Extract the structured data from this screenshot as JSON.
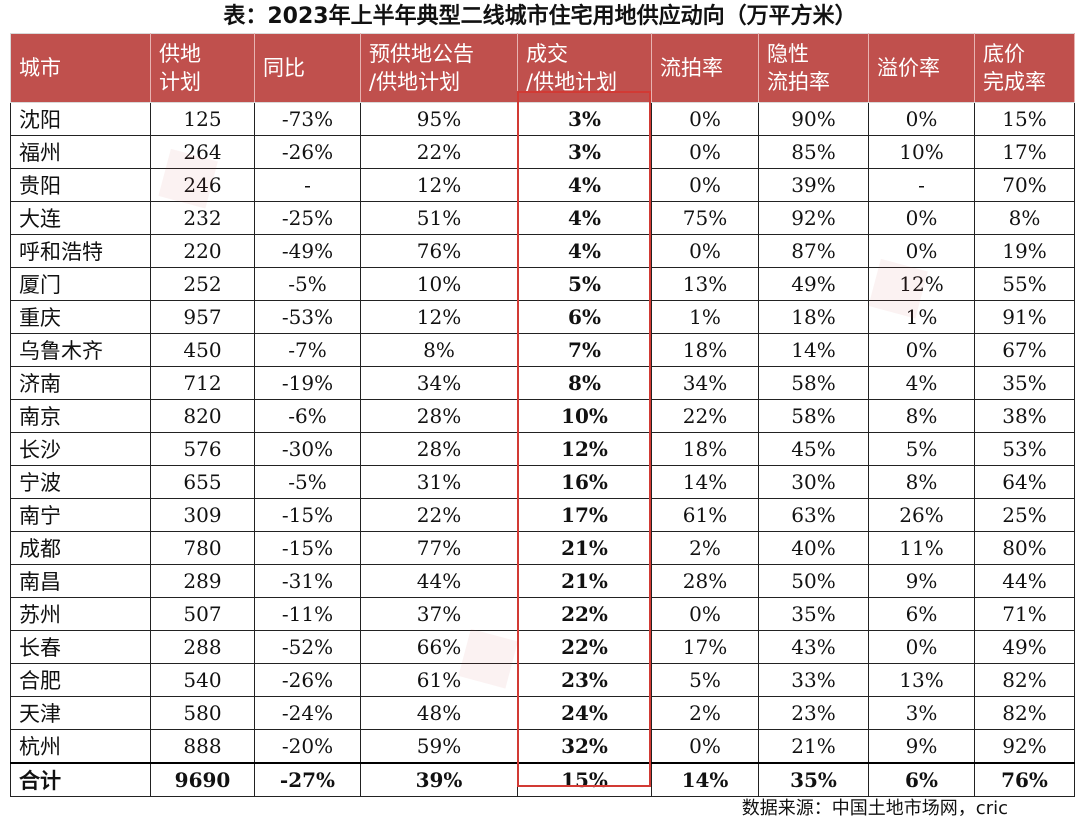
{
  "title": "表：2023年上半年典型二线城市住宅用地供应动向（万平方米）",
  "headers": [
    [
      "城市"
    ],
    [
      "供地",
      "计划"
    ],
    [
      "同比"
    ],
    [
      "预供地公告",
      "/供地计划"
    ],
    [
      "成交",
      "/供地计划"
    ],
    [
      "流拍率"
    ],
    [
      "隐性",
      "流拍率"
    ],
    [
      "溢价率"
    ],
    [
      "底价",
      "完成率"
    ]
  ],
  "rows": [
    [
      "沈阳",
      "125",
      "-73%",
      "95%",
      "3%",
      "0%",
      "90%",
      "0%",
      "15%"
    ],
    [
      "福州",
      "264",
      "-26%",
      "22%",
      "3%",
      "0%",
      "85%",
      "10%",
      "17%"
    ],
    [
      "贵阳",
      "246",
      "-",
      "12%",
      "4%",
      "0%",
      "39%",
      "-",
      "70%"
    ],
    [
      "大连",
      "232",
      "-25%",
      "51%",
      "4%",
      "75%",
      "92%",
      "0%",
      "8%"
    ],
    [
      "呼和浩特",
      "220",
      "-49%",
      "76%",
      "4%",
      "0%",
      "87%",
      "0%",
      "19%"
    ],
    [
      "厦门",
      "252",
      "-5%",
      "10%",
      "5%",
      "13%",
      "49%",
      "12%",
      "55%"
    ],
    [
      "重庆",
      "957",
      "-53%",
      "12%",
      "6%",
      "1%",
      "18%",
      "1%",
      "91%"
    ],
    [
      "乌鲁木齐",
      "450",
      "-7%",
      "8%",
      "7%",
      "18%",
      "14%",
      "0%",
      "67%"
    ],
    [
      "济南",
      "712",
      "-19%",
      "34%",
      "8%",
      "34%",
      "58%",
      "4%",
      "35%"
    ],
    [
      "南京",
      "820",
      "-6%",
      "28%",
      "10%",
      "22%",
      "58%",
      "8%",
      "38%"
    ],
    [
      "长沙",
      "576",
      "-30%",
      "28%",
      "12%",
      "18%",
      "45%",
      "5%",
      "53%"
    ],
    [
      "宁波",
      "655",
      "-5%",
      "31%",
      "16%",
      "14%",
      "30%",
      "8%",
      "64%"
    ],
    [
      "南宁",
      "309",
      "-15%",
      "22%",
      "17%",
      "61%",
      "63%",
      "26%",
      "25%"
    ],
    [
      "成都",
      "780",
      "-15%",
      "77%",
      "21%",
      "2%",
      "40%",
      "11%",
      "80%"
    ],
    [
      "南昌",
      "289",
      "-31%",
      "44%",
      "21%",
      "28%",
      "50%",
      "9%",
      "44%"
    ],
    [
      "苏州",
      "507",
      "-11%",
      "37%",
      "22%",
      "0%",
      "35%",
      "6%",
      "71%"
    ],
    [
      "长春",
      "288",
      "-52%",
      "66%",
      "22%",
      "17%",
      "43%",
      "0%",
      "49%"
    ],
    [
      "合肥",
      "540",
      "-26%",
      "61%",
      "23%",
      "5%",
      "33%",
      "13%",
      "82%"
    ],
    [
      "天津",
      "580",
      "-24%",
      "48%",
      "24%",
      "2%",
      "23%",
      "3%",
      "82%"
    ],
    [
      "杭州",
      "888",
      "-20%",
      "59%",
      "32%",
      "0%",
      "21%",
      "9%",
      "92%"
    ]
  ],
  "total": [
    "合计",
    "9690",
    "-27%",
    "39%",
    "15%",
    "14%",
    "35%",
    "6%",
    "76%"
  ],
  "source": "数据来源：中国土地市场网，cric",
  "colors": {
    "header_bg": "#c0504d",
    "highlight_border": "#d23a34"
  }
}
